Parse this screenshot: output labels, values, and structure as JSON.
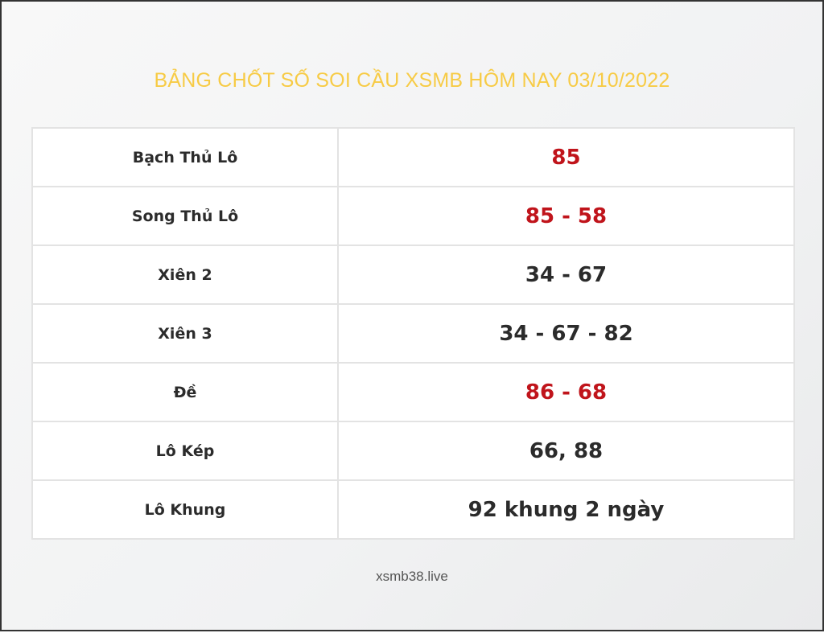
{
  "title": "BẢNG CHỐT SỐ SOI CẦU XSMB HÔM NAY 03/10/2022",
  "colors": {
    "title": "#f7cb45",
    "highlight": "#c0141b",
    "text": "#2b2b2b"
  },
  "rows": [
    {
      "label": "Bạch Thủ Lô",
      "value": "85",
      "highlight": true
    },
    {
      "label": "Song Thủ Lô",
      "value": "85 - 58",
      "highlight": true
    },
    {
      "label": "Xiên 2",
      "value": "34 - 67",
      "highlight": false
    },
    {
      "label": "Xiên 3",
      "value": "34 - 67 - 82",
      "highlight": false
    },
    {
      "label": "Đề",
      "value": "86 - 68",
      "highlight": true
    },
    {
      "label": "Lô Kép",
      "value": "66, 88",
      "highlight": false
    },
    {
      "label": "Lô Khung",
      "value": "92 khung 2 ngày",
      "highlight": false
    }
  ],
  "footer": "xsmb38.live"
}
